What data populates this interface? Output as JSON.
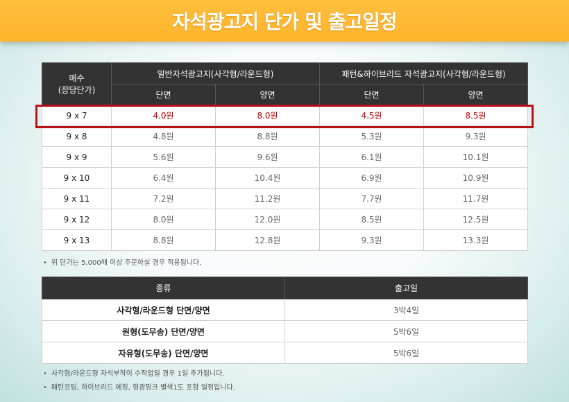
{
  "title": "자석광고지 단가 및 출고일정",
  "price_table": {
    "corner_label_line1": "매수",
    "corner_label_line2": "(장당단가)",
    "group1": "일반자석광고지(사각형/라운드형)",
    "group2": "패턴&하이브리드 자석광고지(사각형/라운드형)",
    "sub_single": "단면",
    "sub_double": "양면",
    "rows": [
      {
        "size": "9 x 7",
        "a": "4.0원",
        "b": "8.0원",
        "c": "4.5원",
        "d": "8.5원"
      },
      {
        "size": "9 x 8",
        "a": "4.8원",
        "b": "8.8원",
        "c": "5.3원",
        "d": "9.3원"
      },
      {
        "size": "9 x 9",
        "a": "5.6원",
        "b": "9.6원",
        "c": "6.1원",
        "d": "10.1원"
      },
      {
        "size": "9 x 10",
        "a": "6.4원",
        "b": "10.4원",
        "c": "6.9원",
        "d": "10.9원"
      },
      {
        "size": "9 x 11",
        "a": "7.2원",
        "b": "11.2원",
        "c": "7.7원",
        "d": "11.7원"
      },
      {
        "size": "9 x 12",
        "a": "8.0원",
        "b": "12.0원",
        "c": "8.5원",
        "d": "12.5원"
      },
      {
        "size": "9 x 13",
        "a": "8.8원",
        "b": "12.8원",
        "c": "9.3원",
        "d": "13.3원"
      }
    ],
    "highlight_color": "#b8111a"
  },
  "price_note": "위 단가는 5,000매 이상 주문하실 경우 적용됩니다.",
  "schedule_table": {
    "col_type": "종류",
    "col_days": "출고일",
    "rows": [
      {
        "type": "사각형/라운드형 단면/양면",
        "days": "3박4일"
      },
      {
        "type": "원형(도무송) 단면/양면",
        "days": "5박6일"
      },
      {
        "type": "자유형(도무송) 단면/양면",
        "days": "5박6일"
      }
    ]
  },
  "schedule_notes": [
    "사각형/라운드형 자석부착이 수작업일 경우 1일 추가됩니다.",
    "패턴코팅, 하이브리드 에칭, 형광핑크 별색1도 포함 일정입니다."
  ],
  "colors": {
    "header_bg": "#ffb52c",
    "table_header_bg": "#333333",
    "highlight_text": "#c10000"
  }
}
